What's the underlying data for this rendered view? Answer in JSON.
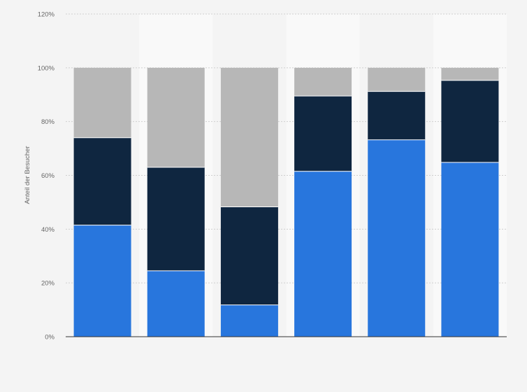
{
  "chart_data": {
    "type": "bar",
    "stacked": true,
    "categories": [
      "",
      "",
      "",
      "",
      "",
      ""
    ],
    "series": [
      {
        "color": "#2876dd",
        "values": [
          41.5,
          24.5,
          11.8,
          61.5,
          73.2,
          64.8
        ]
      },
      {
        "color": "#0f2640",
        "values": [
          32.5,
          38.5,
          36.5,
          28.0,
          18.0,
          30.5
        ]
      },
      {
        "color": "#b7b7b7",
        "values": [
          26.0,
          37.0,
          51.7,
          10.5,
          8.8,
          4.7
        ]
      }
    ],
    "xlabel": "",
    "ylabel": "Anteil der Besucher",
    "ylim": [
      0,
      120
    ],
    "yticks": [
      0,
      20,
      40,
      60,
      80,
      100,
      120
    ],
    "ytick_labels": [
      "0%",
      "20%",
      "40%",
      "60%",
      "80%",
      "100%",
      "120%"
    ],
    "grid": true,
    "legend": "none"
  }
}
